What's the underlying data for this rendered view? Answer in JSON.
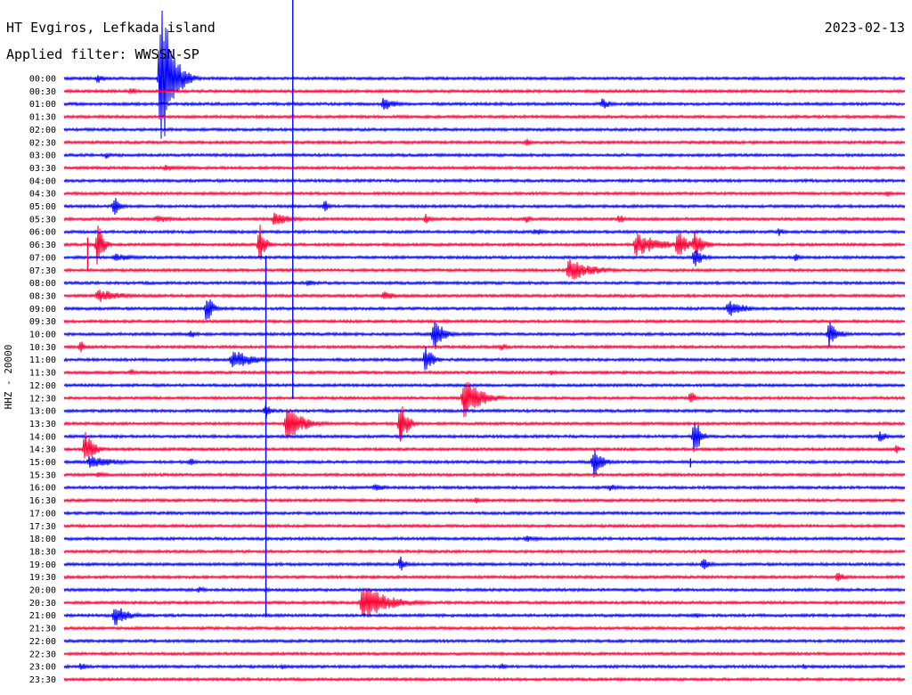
{
  "header": {
    "station": "HT Evgiros, Lefkada island",
    "filter": "Applied filter: WWSSN-SP",
    "date": "2023-02-13"
  },
  "channel_label": "HHZ - 20000",
  "colors": {
    "odd": "#0000ff",
    "even": "#ff0033",
    "text": "#000000"
  },
  "chart_data": {
    "type": "line",
    "time_labels": [
      "00:00",
      "00:30",
      "01:00",
      "01:30",
      "02:00",
      "02:30",
      "03:00",
      "03:30",
      "04:00",
      "04:30",
      "05:00",
      "05:30",
      "06:00",
      "06:30",
      "07:00",
      "07:30",
      "08:00",
      "08:30",
      "09:00",
      "09:30",
      "10:00",
      "10:30",
      "11:00",
      "11:30",
      "12:00",
      "12:30",
      "13:00",
      "13:30",
      "14:00",
      "14:30",
      "15:00",
      "15:30",
      "16:00",
      "16:30",
      "17:00",
      "17:30",
      "18:00",
      "18:30",
      "19:00",
      "19:30",
      "20:00",
      "20:30",
      "21:00",
      "21:30",
      "22:00",
      "22:30",
      "23:00",
      "23:30"
    ],
    "events": [
      {
        "row": 0,
        "t": 0.115,
        "amp": 110,
        "up": 90,
        "dur": 0.012
      },
      {
        "row": 0,
        "t": 0.04,
        "amp": 6,
        "dur": 0.01
      },
      {
        "row": 0,
        "t": 0.133,
        "amp": 8,
        "dur": 0.008
      },
      {
        "row": 1,
        "t": 0.08,
        "amp": 6,
        "dur": 0.005
      },
      {
        "row": 2,
        "t": 0.38,
        "amp": 9,
        "dur": 0.012
      },
      {
        "row": 2,
        "t": 0.64,
        "amp": 7,
        "dur": 0.01
      },
      {
        "row": 5,
        "t": 0.55,
        "amp": 5,
        "dur": 0.006
      },
      {
        "row": 6,
        "t": 0.05,
        "amp": 5,
        "dur": 0.006
      },
      {
        "row": 7,
        "t": 0.12,
        "amp": 4,
        "dur": 0.02
      },
      {
        "row": 9,
        "t": 0.98,
        "amp": 5,
        "dur": 0.004
      },
      {
        "row": 10,
        "t": 0.06,
        "amp": 14,
        "dur": 0.006
      },
      {
        "row": 10,
        "t": 0.31,
        "amp": 8,
        "dur": 0.006
      },
      {
        "row": 11,
        "t": 0.11,
        "amp": 5,
        "dur": 0.02
      },
      {
        "row": 11,
        "t": 0.25,
        "amp": 9,
        "dur": 0.02
      },
      {
        "row": 11,
        "t": 0.43,
        "amp": 6,
        "dur": 0.008
      },
      {
        "row": 11,
        "t": 0.55,
        "amp": 5,
        "dur": 0.006
      },
      {
        "row": 11,
        "t": 0.66,
        "amp": 6,
        "dur": 0.008
      },
      {
        "row": 12,
        "t": 0.56,
        "amp": 5,
        "dur": 0.012
      },
      {
        "row": 12,
        "t": 0.85,
        "amp": 5,
        "dur": 0.008
      },
      {
        "row": 13,
        "t": 0.04,
        "amp": 30,
        "dur": 0.006
      },
      {
        "row": 13,
        "t": 0.233,
        "amp": 24,
        "dur": 0.006
      },
      {
        "row": 13,
        "t": 0.68,
        "amp": 14,
        "dur": 0.03
      },
      {
        "row": 13,
        "t": 0.73,
        "amp": 18,
        "dur": 0.01
      },
      {
        "row": 13,
        "t": 0.75,
        "amp": 16,
        "dur": 0.01
      },
      {
        "row": 14,
        "t": 0.06,
        "amp": 6,
        "dur": 0.02
      },
      {
        "row": 14,
        "t": 0.75,
        "amp": 12,
        "dur": 0.01
      },
      {
        "row": 14,
        "t": 0.87,
        "amp": 5,
        "dur": 0.006
      },
      {
        "row": 15,
        "t": 0.6,
        "amp": 15,
        "dur": 0.025
      },
      {
        "row": 16,
        "t": 0.29,
        "amp": 5,
        "dur": 0.008
      },
      {
        "row": 17,
        "t": 0.04,
        "amp": 8,
        "dur": 0.03
      },
      {
        "row": 17,
        "t": 0.38,
        "amp": 6,
        "dur": 0.015
      },
      {
        "row": 18,
        "t": 0.17,
        "amp": 22,
        "dur": 0.006
      },
      {
        "row": 18,
        "t": 0.79,
        "amp": 10,
        "dur": 0.02
      },
      {
        "row": 20,
        "t": 0.15,
        "amp": 6,
        "dur": 0.008
      },
      {
        "row": 20,
        "t": 0.44,
        "amp": 22,
        "dur": 0.01
      },
      {
        "row": 20,
        "t": 0.91,
        "amp": 16,
        "dur": 0.01
      },
      {
        "row": 21,
        "t": 0.02,
        "amp": 10,
        "dur": 0.004
      },
      {
        "row": 21,
        "t": 0.52,
        "amp": 5,
        "dur": 0.008
      },
      {
        "row": 22,
        "t": 0.2,
        "amp": 12,
        "dur": 0.025
      },
      {
        "row": 22,
        "t": 0.43,
        "amp": 18,
        "dur": 0.008
      },
      {
        "row": 23,
        "t": 0.08,
        "amp": 5,
        "dur": 0.008
      },
      {
        "row": 23,
        "t": 0.58,
        "amp": 4,
        "dur": 0.006
      },
      {
        "row": 25,
        "t": 0.475,
        "amp": 24,
        "dur": 0.02
      },
      {
        "row": 25,
        "t": 0.745,
        "amp": 10,
        "dur": 0.006
      },
      {
        "row": 26,
        "t": 0.24,
        "amp": 10,
        "dur": 0.006
      },
      {
        "row": 27,
        "t": 0.265,
        "amp": 20,
        "dur": 0.02
      },
      {
        "row": 27,
        "t": 0.4,
        "amp": 28,
        "dur": 0.008
      },
      {
        "row": 28,
        "t": 0.75,
        "amp": 30,
        "dur": 0.006
      },
      {
        "row": 28,
        "t": 0.97,
        "amp": 7,
        "dur": 0.01
      },
      {
        "row": 29,
        "t": 0.025,
        "amp": 20,
        "dur": 0.01
      },
      {
        "row": 29,
        "t": 0.99,
        "amp": 6,
        "dur": 0.004
      },
      {
        "row": 30,
        "t": 0.03,
        "amp": 8,
        "dur": 0.03
      },
      {
        "row": 30,
        "t": 0.15,
        "amp": 7,
        "dur": 0.006
      },
      {
        "row": 30,
        "t": 0.63,
        "amp": 18,
        "dur": 0.01
      },
      {
        "row": 31,
        "t": 0.04,
        "amp": 4,
        "dur": 0.01
      },
      {
        "row": 32,
        "t": 0.37,
        "amp": 6,
        "dur": 0.01
      },
      {
        "row": 32,
        "t": 0.65,
        "amp": 5,
        "dur": 0.01
      },
      {
        "row": 33,
        "t": 0.49,
        "amp": 4,
        "dur": 0.01
      },
      {
        "row": 36,
        "t": 0.55,
        "amp": 5,
        "dur": 0.015
      },
      {
        "row": 38,
        "t": 0.4,
        "amp": 10,
        "dur": 0.006
      },
      {
        "row": 38,
        "t": 0.76,
        "amp": 7,
        "dur": 0.01
      },
      {
        "row": 39,
        "t": 0.92,
        "amp": 6,
        "dur": 0.01
      },
      {
        "row": 40,
        "t": 0.16,
        "amp": 4,
        "dur": 0.01
      },
      {
        "row": 41,
        "t": 0.355,
        "amp": 22,
        "dur": 0.03
      },
      {
        "row": 42,
        "t": 0.06,
        "amp": 14,
        "dur": 0.015
      },
      {
        "row": 42,
        "t": 0.75,
        "amp": 4,
        "dur": 0.01
      },
      {
        "row": 46,
        "t": 0.02,
        "amp": 5,
        "dur": 0.008
      },
      {
        "row": 46,
        "t": 0.26,
        "amp": 4,
        "dur": 0.004
      },
      {
        "row": 46,
        "t": 0.52,
        "amp": 4,
        "dur": 0.008
      },
      {
        "row": 46,
        "t": 0.88,
        "amp": 4,
        "dur": 0.004
      }
    ],
    "spikes": [
      {
        "row": 0,
        "t": 0.272,
        "up": 88,
        "down": 360
      },
      {
        "row": 13,
        "t": 0.028,
        "up": 8,
        "down": 30
      },
      {
        "row": 14,
        "t": 0.24,
        "up": 2,
        "down": 404
      },
      {
        "row": 27,
        "t": 0.4,
        "up": 4,
        "down": 20
      },
      {
        "row": 30,
        "t": 0.745,
        "up": 4,
        "down": 6
      }
    ]
  }
}
